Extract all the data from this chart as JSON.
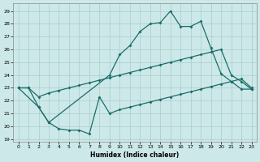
{
  "bg_color": "#cde8e8",
  "grid_color": "#a8cccc",
  "line_color": "#1a6e6a",
  "xlabel": "Humidex (Indice chaleur)",
  "xlim": [
    -0.5,
    23.5
  ],
  "ylim": [
    18.8,
    29.6
  ],
  "xticks": [
    0,
    1,
    2,
    3,
    4,
    5,
    6,
    7,
    8,
    9,
    10,
    11,
    12,
    13,
    14,
    15,
    16,
    17,
    18,
    19,
    20,
    21,
    22,
    23
  ],
  "yticks": [
    19,
    20,
    21,
    22,
    23,
    24,
    25,
    26,
    27,
    28,
    29
  ],
  "line_top_x": [
    0,
    1,
    2,
    3,
    9,
    10,
    11,
    12,
    13,
    14,
    15,
    16,
    17,
    18,
    19,
    20,
    21,
    22,
    23
  ],
  "line_top_y": [
    23.0,
    23.0,
    21.5,
    20.3,
    24.0,
    25.6,
    26.3,
    27.4,
    28.0,
    28.1,
    29.0,
    27.8,
    27.8,
    28.2,
    26.1,
    24.1,
    23.5,
    22.9,
    22.9
  ],
  "line_mid_x": [
    0,
    1,
    2,
    3,
    4,
    5,
    6,
    7,
    8,
    9,
    10,
    11,
    12,
    13,
    14,
    15,
    16,
    17,
    18,
    19,
    20,
    21,
    22,
    23
  ],
  "line_mid_y": [
    23.0,
    23.0,
    22.3,
    22.6,
    22.8,
    23.0,
    23.2,
    23.4,
    23.6,
    23.8,
    24.0,
    24.2,
    24.4,
    24.6,
    24.8,
    25.0,
    25.2,
    25.4,
    25.6,
    25.8,
    26.0,
    24.0,
    23.5,
    22.9
  ],
  "line_bot_x": [
    0,
    2,
    3,
    4,
    5,
    6,
    7,
    8,
    9,
    10,
    11,
    12,
    13,
    14,
    15,
    16,
    17,
    18,
    19,
    20,
    21,
    22,
    23
  ],
  "line_bot_y": [
    23.0,
    21.5,
    20.3,
    19.8,
    19.7,
    19.7,
    19.4,
    22.3,
    21.0,
    21.3,
    21.5,
    21.7,
    21.9,
    22.1,
    22.3,
    22.5,
    22.7,
    22.9,
    23.1,
    23.3,
    23.5,
    23.7,
    23.0
  ]
}
